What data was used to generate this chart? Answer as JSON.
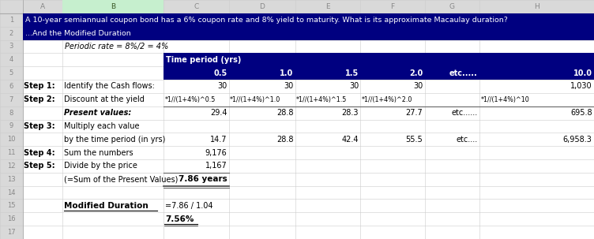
{
  "figsize": [
    7.52,
    3.03
  ],
  "dpi": 100,
  "header_blue": "#000080",
  "white": "#FFFFFF",
  "black": "#000000",
  "col_header_bg": "#D9D9D9",
  "col_header_fg": "#888888",
  "b_col_header_bg": "#C6EFCE",
  "b_col_header_fg": "#375623",
  "row_num_bg": "#D9D9D9",
  "n_rows": 17,
  "col_labels": [
    "A",
    "B",
    "C",
    "D",
    "E",
    "F",
    "G",
    "H"
  ],
  "row2_text": "A 10-year semiannual coupon bond has a 6% coupon rate and 8% yield to maturity. What is its approximate Macaulay duration?",
  "row3_text": "...And the Modified Duration",
  "row4_text": "Periodic rate = 8%/2 = 4%",
  "tp_header": "Time period (yrs)",
  "time_periods": [
    "0.5",
    "1.0",
    "1.5",
    "2.0",
    "etc.....",
    "10.0"
  ],
  "cash_flows": [
    "30",
    "30",
    "30",
    "30",
    "",
    "1,030"
  ],
  "formulas": [
    "*1//(1+4%)^0.5",
    "*1//(1+4%)^1.0",
    "*1//(1+4%)^1.5",
    "*1//(1+4%)^2.0",
    "",
    "*1//(1+4%)^10"
  ],
  "pv_label": "Present values:",
  "pv_values": [
    "29.4",
    "28.8",
    "28.3",
    "27.7",
    "etc......",
    "695.8"
  ],
  "step3_line1": "Multiply each value",
  "step3_line2": "by the time period (in yrs)",
  "mult_values": [
    "14.7",
    "28.8",
    "42.4",
    "55.5",
    "etc....",
    "6,958.3"
  ],
  "step4_label": "Sum the numbers",
  "step4_val": "9,176",
  "step5_label": "Divide by the price",
  "step5_val": "1,167",
  "row14_label": "(=Sum of the Present Values)",
  "row14_val": "7.86 years",
  "mod_dur_label": "Modified Duration",
  "mod_dur_formula": "=7.86 / 1.04",
  "mod_dur_val": "7.56%"
}
